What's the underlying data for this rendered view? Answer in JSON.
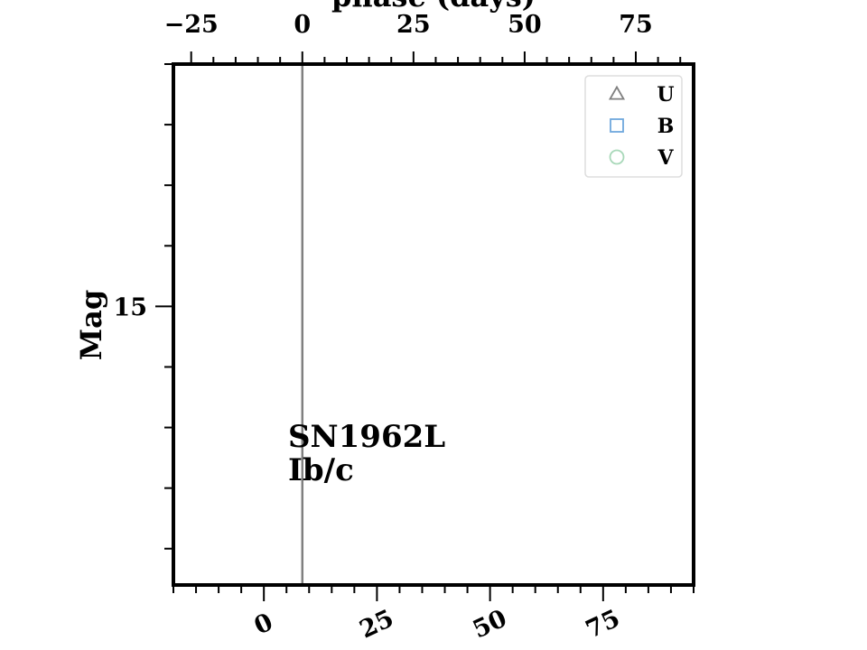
{
  "chart_data": {
    "type": "scatter",
    "title": "",
    "top_xlabel": "phase (days)",
    "ylabel": "Mag",
    "phase_xlim": [
      -29,
      88
    ],
    "phase_ticks": [
      -25,
      0,
      25,
      50,
      75
    ],
    "phase_tick_labels": [
      "−25",
      "0",
      "25",
      "50",
      "75"
    ],
    "bottom_xlim": [
      -20,
      95
    ],
    "bottom_ticks": [
      0,
      25,
      50,
      75
    ],
    "bottom_tick_labels": [
      "0",
      "25",
      "50",
      "75"
    ],
    "ylim": [
      17.3,
      13.0
    ],
    "y_inverted": true,
    "y_ticks": [
      15
    ],
    "y_tick_labels": [
      "15"
    ],
    "reference_line_phase": 0,
    "annotation": {
      "name": "SN1962L",
      "type": "Ib/c"
    },
    "legend_position": "upper right",
    "series": [
      {
        "name": "U",
        "marker": "triangle",
        "color": "#808080",
        "x": [],
        "y": []
      },
      {
        "name": "B",
        "marker": "square",
        "color": "#6fa8dc",
        "x": [],
        "y": []
      },
      {
        "name": "V",
        "marker": "circle",
        "color": "#a8d8b9",
        "x": [],
        "y": []
      }
    ]
  }
}
